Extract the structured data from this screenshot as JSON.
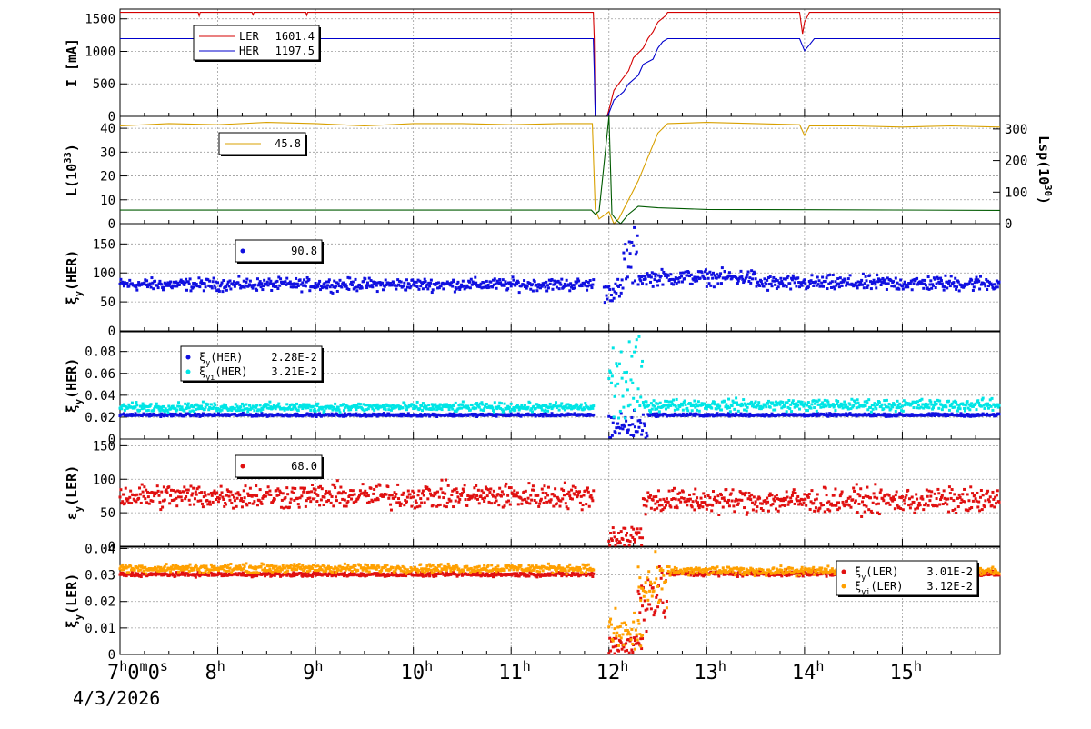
{
  "colors": {
    "ler_current": "#d40000",
    "her_current": "#0000cc",
    "luminosity": "#d8a000",
    "luminosity_specific": "#005a00",
    "xi_her": "#1010e0",
    "xi_her_i": "#00e5e5",
    "xi_ler": "#e01010",
    "xi_ler_i": "#ffa000",
    "grid": "#9a9a9a"
  },
  "time_axis": {
    "start_label": "7h0m0s",
    "labels": [
      "8h",
      "9h",
      "10h",
      "11h",
      "12h",
      "13h",
      "14h",
      "15h"
    ],
    "date": "4/3/2026",
    "range_hours": [
      7,
      16
    ]
  },
  "chart_data": [
    {
      "type": "line",
      "ylabel": "I [mA]",
      "ylim": [
        0,
        1650
      ],
      "yticks": [
        0,
        500,
        1000,
        1500
      ],
      "legend": {
        "placement": "top-left",
        "entries": [
          {
            "label": "LER",
            "value": "1601.4"
          },
          {
            "label": "HER",
            "value": "1197.5"
          }
        ]
      },
      "series": [
        {
          "name": "LER",
          "points": [
            [
              7,
              1600
            ],
            [
              7.8,
              1600
            ],
            [
              7.81,
              1545
            ],
            [
              7.82,
              1600
            ],
            [
              8.35,
              1600
            ],
            [
              8.36,
              1560
            ],
            [
              8.37,
              1600
            ],
            [
              8.9,
              1600
            ],
            [
              8.91,
              1555
            ],
            [
              8.92,
              1600
            ],
            [
              11.84,
              1600
            ],
            [
              11.85,
              1200
            ],
            [
              11.86,
              0
            ],
            [
              11.98,
              0
            ],
            [
              12.0,
              100
            ],
            [
              12.05,
              400
            ],
            [
              12.1,
              500
            ],
            [
              12.2,
              700
            ],
            [
              12.25,
              900
            ],
            [
              12.35,
              1050
            ],
            [
              12.4,
              1200
            ],
            [
              12.45,
              1300
            ],
            [
              12.5,
              1450
            ],
            [
              12.58,
              1550
            ],
            [
              12.6,
              1600
            ],
            [
              13.95,
              1600
            ],
            [
              13.98,
              1270
            ],
            [
              14.0,
              1450
            ],
            [
              14.05,
              1600
            ],
            [
              16,
              1600
            ]
          ]
        },
        {
          "name": "HER",
          "points": [
            [
              7,
              1195
            ],
            [
              11.84,
              1195
            ],
            [
              11.85,
              700
            ],
            [
              11.86,
              0
            ],
            [
              11.98,
              0
            ],
            [
              12.0,
              50
            ],
            [
              12.05,
              250
            ],
            [
              12.15,
              380
            ],
            [
              12.2,
              500
            ],
            [
              12.3,
              630
            ],
            [
              12.35,
              800
            ],
            [
              12.45,
              880
            ],
            [
              12.5,
              1050
            ],
            [
              12.55,
              1150
            ],
            [
              12.6,
              1195
            ],
            [
              13.95,
              1195
            ],
            [
              14.0,
              1010
            ],
            [
              14.05,
              1100
            ],
            [
              14.1,
              1195
            ],
            [
              16,
              1195
            ]
          ]
        }
      ]
    },
    {
      "type": "line",
      "ylabel": "L(10^33)",
      "ylim": [
        0,
        45
      ],
      "yticks": [
        0,
        10,
        20,
        30,
        40
      ],
      "y2label": "Lsp(10^30)",
      "y2lim": [
        0,
        340
      ],
      "y2ticks": [
        0,
        100,
        200,
        300
      ],
      "legend": {
        "placement": "top-left",
        "entries": [
          {
            "label": "",
            "value": "45.8"
          }
        ]
      },
      "series": [
        {
          "name": "L",
          "axis": "left",
          "points": [
            [
              7,
              41
            ],
            [
              7.5,
              42
            ],
            [
              8,
              41.5
            ],
            [
              8.5,
              42.5
            ],
            [
              9,
              42
            ],
            [
              9.5,
              41
            ],
            [
              10,
              42
            ],
            [
              10.5,
              42
            ],
            [
              11,
              41.5
            ],
            [
              11.5,
              42
            ],
            [
              11.83,
              42
            ],
            [
              11.86,
              6
            ],
            [
              11.9,
              2
            ],
            [
              12.0,
              5
            ],
            [
              12.05,
              0
            ],
            [
              12.1,
              2
            ],
            [
              12.2,
              10
            ],
            [
              12.3,
              18
            ],
            [
              12.4,
              28
            ],
            [
              12.5,
              38
            ],
            [
              12.6,
              42
            ],
            [
              13,
              42.5
            ],
            [
              13.5,
              42
            ],
            [
              13.95,
              41.5
            ],
            [
              14.0,
              37
            ],
            [
              14.05,
              41
            ],
            [
              14.5,
              41
            ],
            [
              15,
              40.5
            ],
            [
              15.5,
              41
            ],
            [
              16,
              40.5
            ]
          ]
        },
        {
          "name": "Lsp",
          "axis": "right",
          "points": [
            [
              7,
              43
            ],
            [
              11.82,
              43
            ],
            [
              11.86,
              30
            ],
            [
              11.9,
              40
            ],
            [
              12.0,
              340
            ],
            [
              12.03,
              30
            ],
            [
              12.08,
              10
            ],
            [
              12.12,
              0
            ],
            [
              12.2,
              30
            ],
            [
              12.3,
              55
            ],
            [
              12.5,
              50
            ],
            [
              13,
              45
            ],
            [
              14,
              44
            ],
            [
              16,
              42
            ]
          ]
        }
      ]
    },
    {
      "type": "scatter",
      "ylabel": "ξy(HER)",
      "ylim": [
        0,
        185
      ],
      "yticks": [
        0,
        50,
        100,
        150
      ],
      "legend": {
        "placement": "top-left",
        "entries": [
          {
            "label": "",
            "value": "90.8"
          }
        ]
      },
      "series": [
        {
          "name": "",
          "segments": [
            {
              "x": [
                7,
                11.85
              ],
              "y": 80,
              "spread": 8
            },
            {
              "x": [
                11.95,
                12.15
              ],
              "y": 70,
              "spread": 15
            },
            {
              "x": [
                12.15,
                12.3
              ],
              "y": 120,
              "spread": 40
            },
            {
              "x": [
                12.3,
                13.5
              ],
              "y": 92,
              "spread": 10
            },
            {
              "x": [
                13.5,
                16
              ],
              "y": 82,
              "spread": 10
            }
          ]
        }
      ]
    },
    {
      "type": "scatter",
      "ylabel": "ξy(HER)",
      "ylim": [
        0,
        0.098
      ],
      "yticks": [
        0,
        0.02,
        0.04,
        0.06,
        0.08
      ],
      "legend": {
        "placement": "top-left",
        "entries": [
          {
            "label": "ξy(HER)",
            "value": "2.28E-2"
          },
          {
            "label": "ξyi(HER)",
            "value": "3.21E-2"
          }
        ]
      },
      "series": [
        {
          "name": "ξy(HER)",
          "segments": [
            {
              "x": [
                7,
                11.85
              ],
              "y": 0.022,
              "spread": 0.001
            },
            {
              "x": [
                12.0,
                12.4
              ],
              "y": 0.012,
              "spread": 0.01
            },
            {
              "x": [
                12.4,
                16
              ],
              "y": 0.022,
              "spread": 0.001
            }
          ]
        },
        {
          "name": "ξyi(HER)",
          "segments": [
            {
              "x": [
                7,
                11.85
              ],
              "y": 0.029,
              "spread": 0.003
            },
            {
              "x": [
                12.0,
                12.35
              ],
              "y": 0.05,
              "spread": 0.03
            },
            {
              "x": [
                12.35,
                16
              ],
              "y": 0.031,
              "spread": 0.004
            }
          ]
        }
      ]
    },
    {
      "type": "scatter",
      "ylabel": "εy(LER)",
      "ylim": [
        0,
        160
      ],
      "yticks": [
        0,
        50,
        100,
        150
      ],
      "legend": {
        "placement": "top-left",
        "entries": [
          {
            "label": "",
            "value": "68.0"
          }
        ]
      },
      "series": [
        {
          "name": "",
          "segments": [
            {
              "x": [
                7,
                11.85
              ],
              "y": 75,
              "spread": 14
            },
            {
              "x": [
                12.0,
                12.35
              ],
              "y": 15,
              "spread": 15
            },
            {
              "x": [
                12.35,
                16
              ],
              "y": 68,
              "spread": 14
            }
          ]
        }
      ]
    },
    {
      "type": "scatter",
      "ylabel": "ξy(LER)",
      "ylim": [
        0,
        0.0405
      ],
      "yticks": [
        0,
        0.01,
        0.02,
        0.03,
        0.04
      ],
      "legend": {
        "placement": "top-right",
        "entries": [
          {
            "label": "ξy(LER)",
            "value": "3.01E-2"
          },
          {
            "label": "ξyi(LER)",
            "value": "3.12E-2"
          }
        ]
      },
      "series": [
        {
          "name": "ξy(LER)",
          "segments": [
            {
              "x": [
                7,
                11.85
              ],
              "y": 0.0302,
              "spread": 0.0006
            },
            {
              "x": [
                12.0,
                12.35
              ],
              "y": 0.004,
              "spread": 0.004
            },
            {
              "x": [
                12.3,
                12.6
              ],
              "y": 0.022,
              "spread": 0.008
            },
            {
              "x": [
                12.6,
                16
              ],
              "y": 0.0305,
              "spread": 0.0008
            }
          ]
        },
        {
          "name": "ξyi(LER)",
          "segments": [
            {
              "x": [
                7,
                11.85
              ],
              "y": 0.0325,
              "spread": 0.0012
            },
            {
              "x": [
                12.0,
                12.35
              ],
              "y": 0.008,
              "spread": 0.006
            },
            {
              "x": [
                12.3,
                12.6
              ],
              "y": 0.025,
              "spread": 0.008
            },
            {
              "x": [
                12.6,
                16
              ],
              "y": 0.0315,
              "spread": 0.0012
            }
          ]
        }
      ]
    }
  ]
}
